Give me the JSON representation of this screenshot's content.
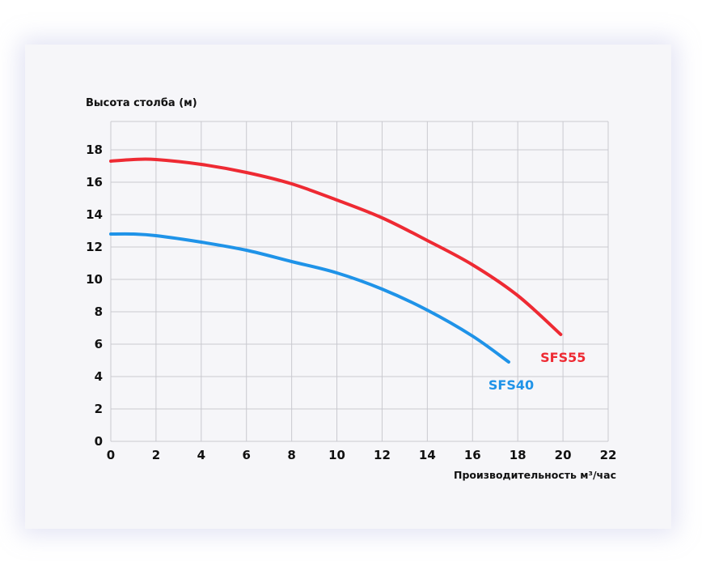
{
  "chart_data": {
    "type": "line",
    "ylabel": "Высота столба (м)",
    "xlabel": "Производительность м³/час",
    "xlim": [
      0,
      22
    ],
    "ylim": [
      0,
      19.5
    ],
    "x_ticks": [
      0,
      2,
      4,
      6,
      8,
      10,
      12,
      14,
      16,
      18,
      20,
      22
    ],
    "y_ticks": [
      0,
      2,
      4,
      6,
      8,
      10,
      12,
      14,
      16,
      18
    ],
    "grid": true,
    "series": [
      {
        "name": "SFS55",
        "color": "#ee2a33",
        "x": [
          0,
          1,
          2,
          4,
          6,
          8,
          10,
          12,
          14,
          16,
          18,
          19.9
        ],
        "y": [
          17.3,
          17.4,
          17.4,
          17.1,
          16.6,
          15.9,
          14.9,
          13.8,
          12.4,
          10.9,
          9.0,
          6.6
        ]
      },
      {
        "name": "SFS40",
        "color": "#1f93e8",
        "x": [
          0,
          1,
          2,
          4,
          6,
          8,
          10,
          12,
          14,
          16,
          17.6
        ],
        "y": [
          12.8,
          12.8,
          12.7,
          12.3,
          11.8,
          11.1,
          10.4,
          9.4,
          8.1,
          6.5,
          4.9
        ]
      }
    ]
  }
}
